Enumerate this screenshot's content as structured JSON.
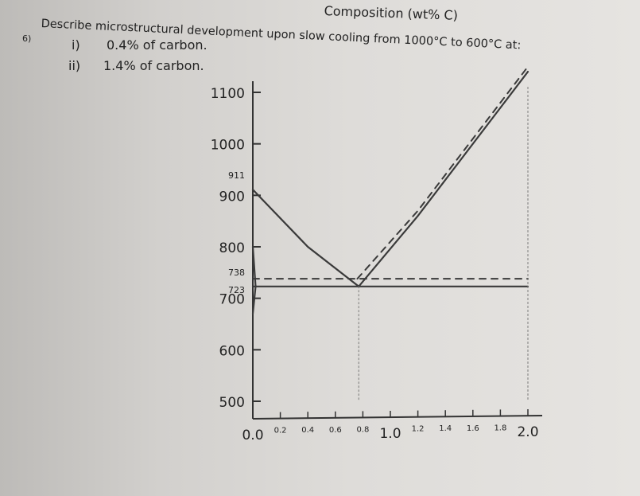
{
  "header": {
    "composition_label": "Composition (wt% C)"
  },
  "question": {
    "number": "6)",
    "text": "Describe microstructural development upon slow cooling from 1000°C to 600°C at:",
    "items": [
      {
        "num": "i)",
        "label": "0.4% of carbon."
      },
      {
        "num": "ii)",
        "label": "1.4% of carbon."
      }
    ]
  },
  "chart_data": {
    "type": "line",
    "title": "",
    "xlabel": "Composition (wt% C)",
    "ylabel": "",
    "xlim": [
      0.0,
      2.0
    ],
    "ylim": [
      500,
      1100
    ],
    "x_ticks": [
      "0.0",
      "0.2",
      "0.4",
      "0.6",
      "0.8",
      "1.0",
      "1.2",
      "1.4",
      "1.6",
      "1.8",
      "2.0"
    ],
    "y_ticks": [
      "500",
      "600",
      "700",
      "800",
      "900",
      "1000",
      "1100"
    ],
    "y_marks": [
      "911",
      "738",
      "723"
    ],
    "series": [
      {
        "style": "solid",
        "points": [
          [
            0.0,
            911
          ],
          [
            0.4,
            800
          ],
          [
            0.77,
            723
          ]
        ]
      },
      {
        "style": "solid",
        "points": [
          [
            0.77,
            723
          ],
          [
            1.2,
            860
          ],
          [
            2.0,
            1140
          ]
        ]
      },
      {
        "style": "dashed",
        "points": [
          [
            0.76,
            738
          ],
          [
            1.2,
            870
          ],
          [
            2.0,
            1150
          ]
        ]
      },
      {
        "style": "solid",
        "points": [
          [
            0.0,
            723
          ],
          [
            2.0,
            723
          ]
        ]
      },
      {
        "style": "dashed",
        "points": [
          [
            0.0,
            738
          ],
          [
            2.0,
            738
          ]
        ]
      },
      {
        "style": "solid",
        "points": [
          [
            0.0,
            670
          ],
          [
            0.02,
            723
          ],
          [
            0.0,
            800
          ]
        ]
      },
      {
        "style": "dotted",
        "points": [
          [
            0.77,
            723
          ],
          [
            0.77,
            500
          ]
        ]
      },
      {
        "style": "dotted",
        "points": [
          [
            2.0,
            1110
          ],
          [
            2.0,
            500
          ]
        ]
      }
    ]
  }
}
